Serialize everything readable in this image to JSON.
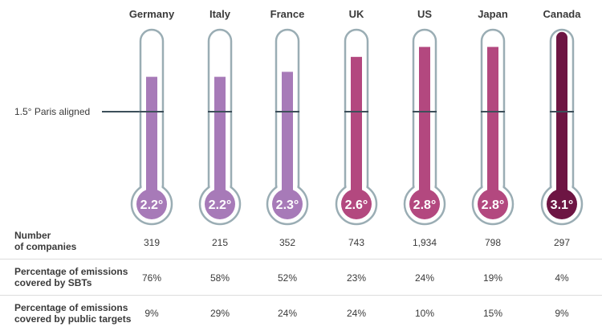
{
  "chart_data": {
    "type": "bar",
    "categories": [
      "Germany",
      "Italy",
      "France",
      "UK",
      "US",
      "Japan",
      "Canada"
    ],
    "values": [
      2.2,
      2.2,
      2.3,
      2.6,
      2.8,
      2.8,
      3.1
    ],
    "value_labels": [
      "2.2°",
      "2.2°",
      "2.3°",
      "2.6°",
      "2.8°",
      "2.8°",
      "3.1°"
    ],
    "reference_line": {
      "label": "1.5° Paris aligned",
      "value": 1.5
    },
    "ylim": [
      0,
      3.2
    ],
    "colors": [
      "#a77ab8",
      "#a77ab8",
      "#a77ab8",
      "#b3487f",
      "#b3487f",
      "#b3487f",
      "#6d1543"
    ],
    "outline_color": "#9aadb4"
  },
  "table": {
    "rows": [
      {
        "label": "Number\nof companies",
        "values": [
          "319",
          "215",
          "352",
          "743",
          "1,934",
          "798",
          "297"
        ]
      },
      {
        "label": "Percentage of emissions\ncovered by SBTs",
        "values": [
          "76%",
          "58%",
          "52%",
          "23%",
          "24%",
          "19%",
          "4%"
        ]
      },
      {
        "label": "Percentage of emissions\ncovered by public targets",
        "values": [
          "9%",
          "29%",
          "24%",
          "24%",
          "10%",
          "15%",
          "9%"
        ]
      }
    ]
  }
}
